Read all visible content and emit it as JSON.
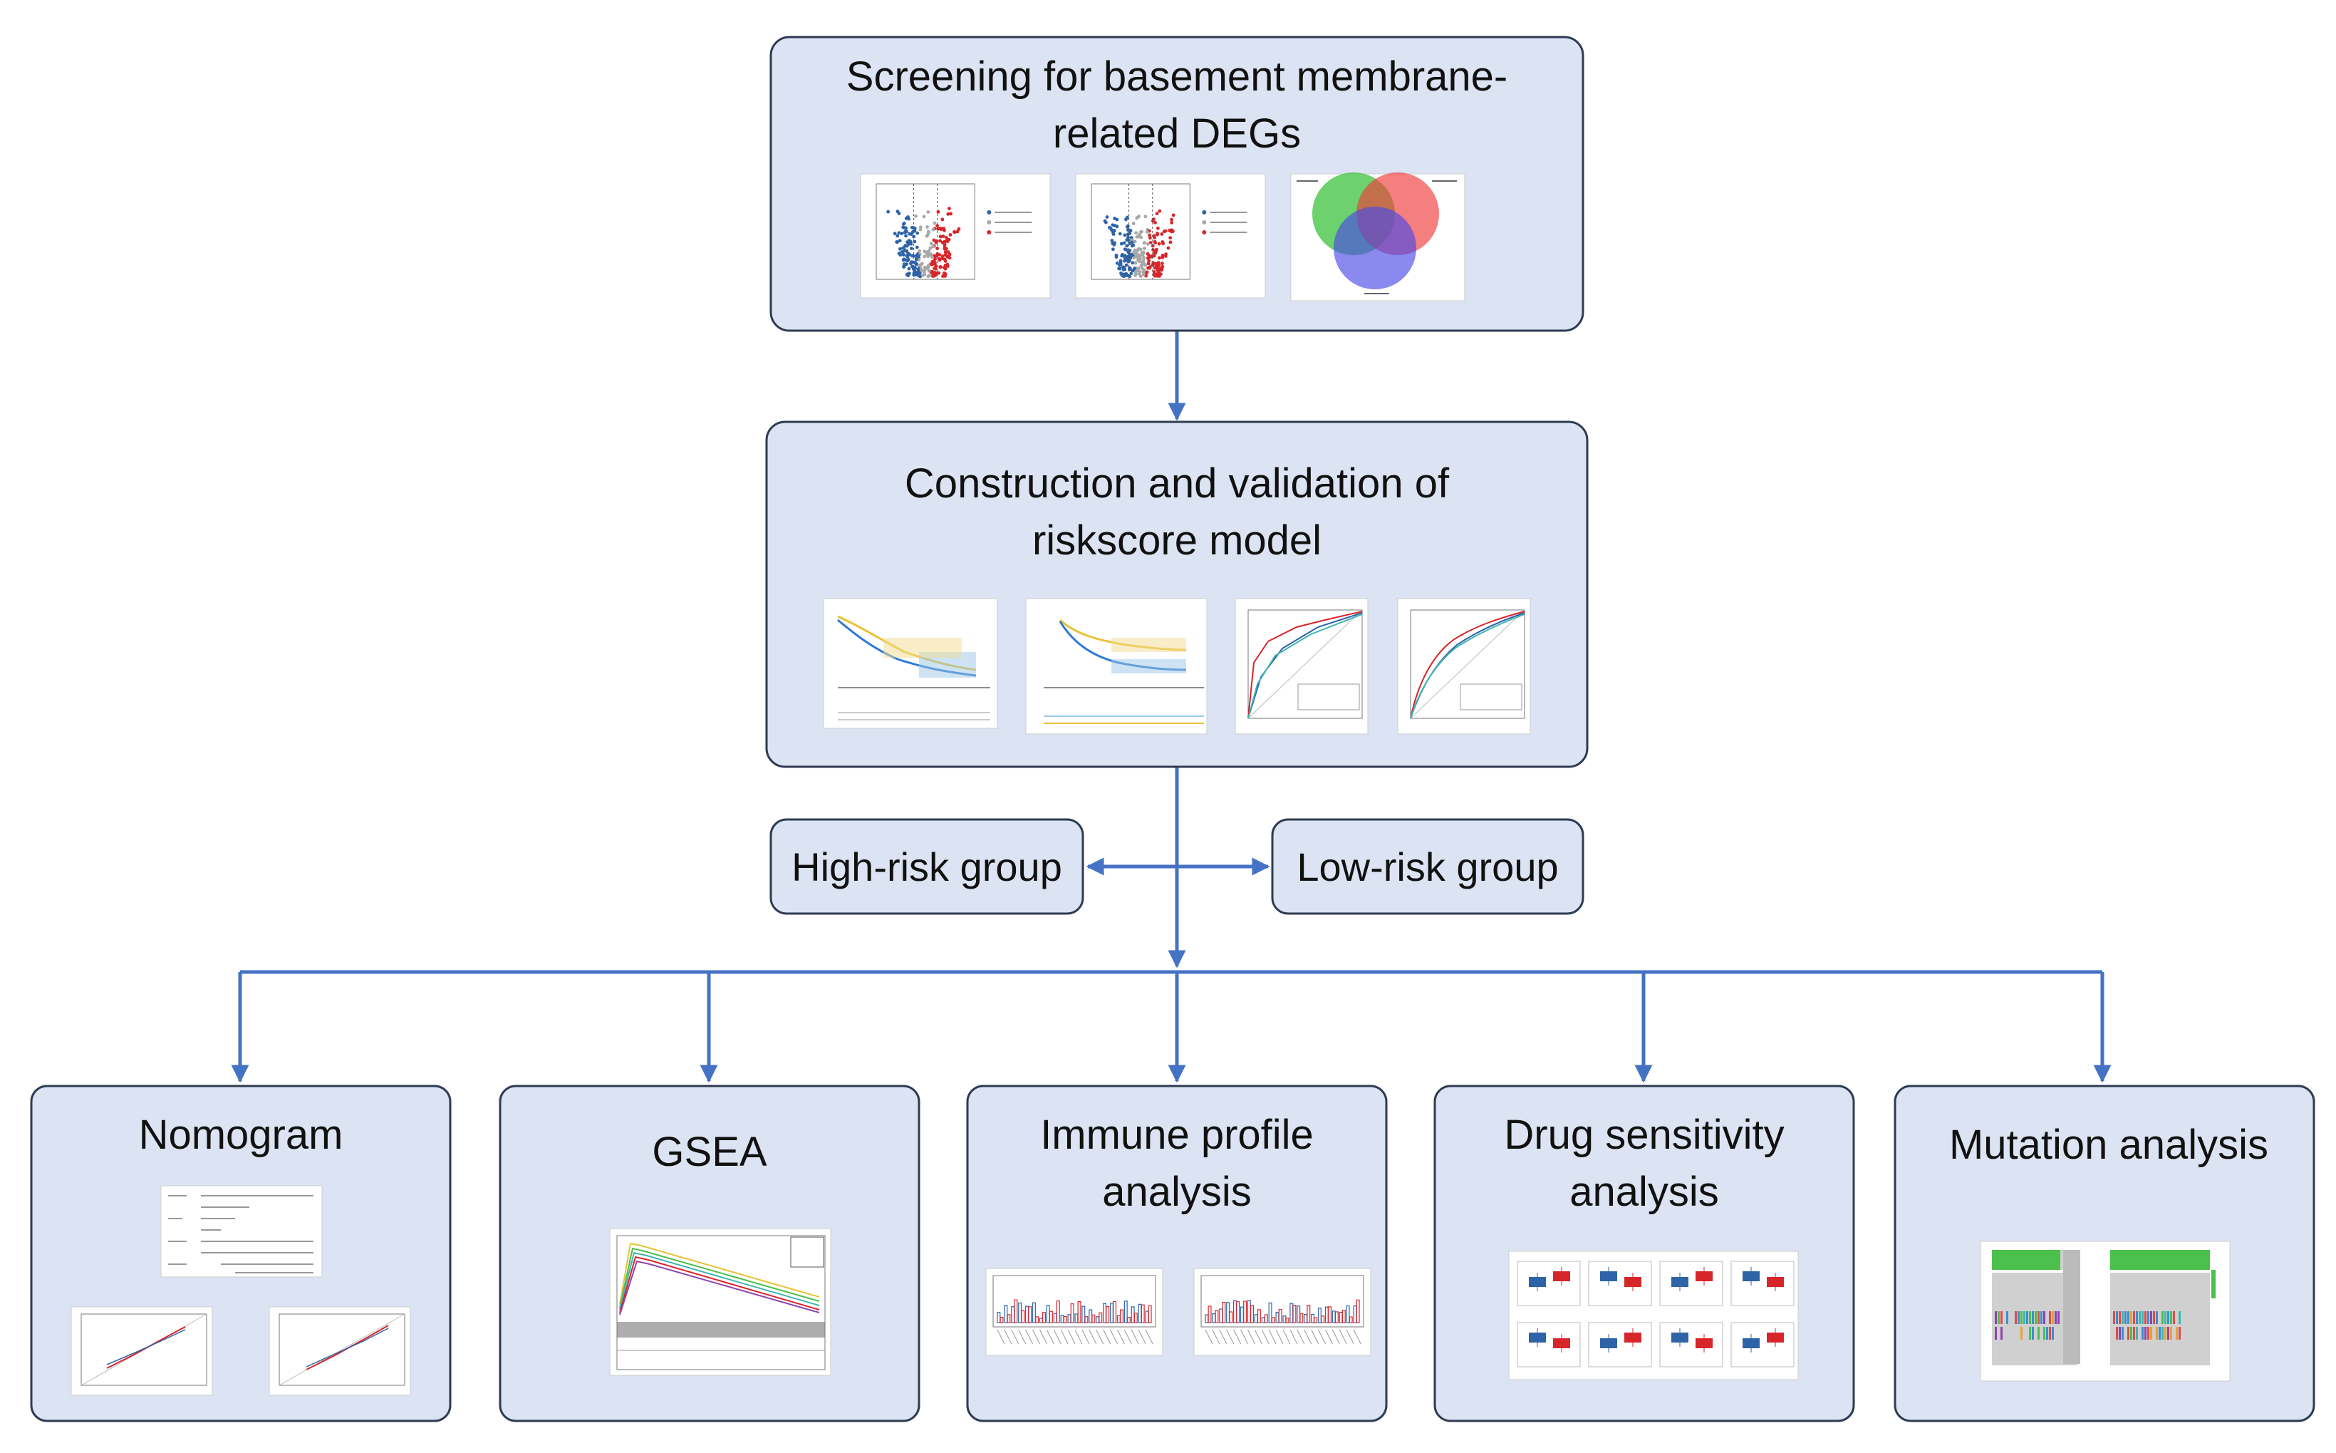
{
  "colors": {
    "box_fill": "#dce3f3",
    "box_stroke": "#2f3b52",
    "arrow": "#4472c4",
    "text": "#111111",
    "thumb_bg": "#ffffff",
    "blue": "#2e63a8",
    "red": "#d7262a",
    "grey": "#a8a8a8",
    "green": "#4cc04c",
    "yellow": "#e8c237",
    "teal": "#3fb6b0"
  },
  "nodes": {
    "screening": {
      "line1": "Screening for basement membrane-",
      "line2": "related DEGs"
    },
    "construction": {
      "line1": "Construction and validation of",
      "line2": "riskscore model"
    },
    "high_risk": {
      "label": "High-risk group"
    },
    "low_risk": {
      "label": "Low-risk group"
    },
    "nomogram": {
      "label": "Nomogram"
    },
    "gsea": {
      "label": "GSEA"
    },
    "immune": {
      "line1": "Immune profile",
      "line2": "analysis"
    },
    "drug": {
      "line1": "Drug sensitivity",
      "line2": "analysis"
    },
    "mutation": {
      "label": "Mutation analysis"
    }
  },
  "thumbnails": {
    "volcano_1": {
      "icon": "volcano-plot-icon"
    },
    "volcano_2": {
      "icon": "volcano-plot-icon"
    },
    "venn": {
      "icon": "venn-diagram-icon"
    },
    "km_1": {
      "icon": "kaplan-meier-curve-icon"
    },
    "km_2": {
      "icon": "kaplan-meier-curve-icon"
    },
    "roc_1": {
      "icon": "roc-curve-icon"
    },
    "roc_2": {
      "icon": "roc-curve-icon"
    },
    "nomogram_plot": {
      "icon": "nomogram-plot-icon"
    },
    "calibration_1": {
      "icon": "calibration-plot-icon"
    },
    "calibration_2": {
      "icon": "calibration-plot-icon"
    },
    "gsea_plot": {
      "icon": "gsea-enrichment-plot-icon"
    },
    "immune_box_1": {
      "icon": "boxplot-icon"
    },
    "immune_box_2": {
      "icon": "boxplot-icon"
    },
    "drug_boxplots": {
      "icon": "boxplot-grid-icon"
    },
    "oncoplot": {
      "icon": "oncoplot-icon"
    }
  },
  "edges": [
    {
      "from": "screening",
      "to": "construction"
    },
    {
      "from": "construction",
      "to": "high_risk"
    },
    {
      "from": "construction",
      "to": "low_risk"
    },
    {
      "from": "construction",
      "to": "nomogram"
    },
    {
      "from": "construction",
      "to": "gsea"
    },
    {
      "from": "construction",
      "to": "immune"
    },
    {
      "from": "construction",
      "to": "drug"
    },
    {
      "from": "construction",
      "to": "mutation"
    }
  ]
}
